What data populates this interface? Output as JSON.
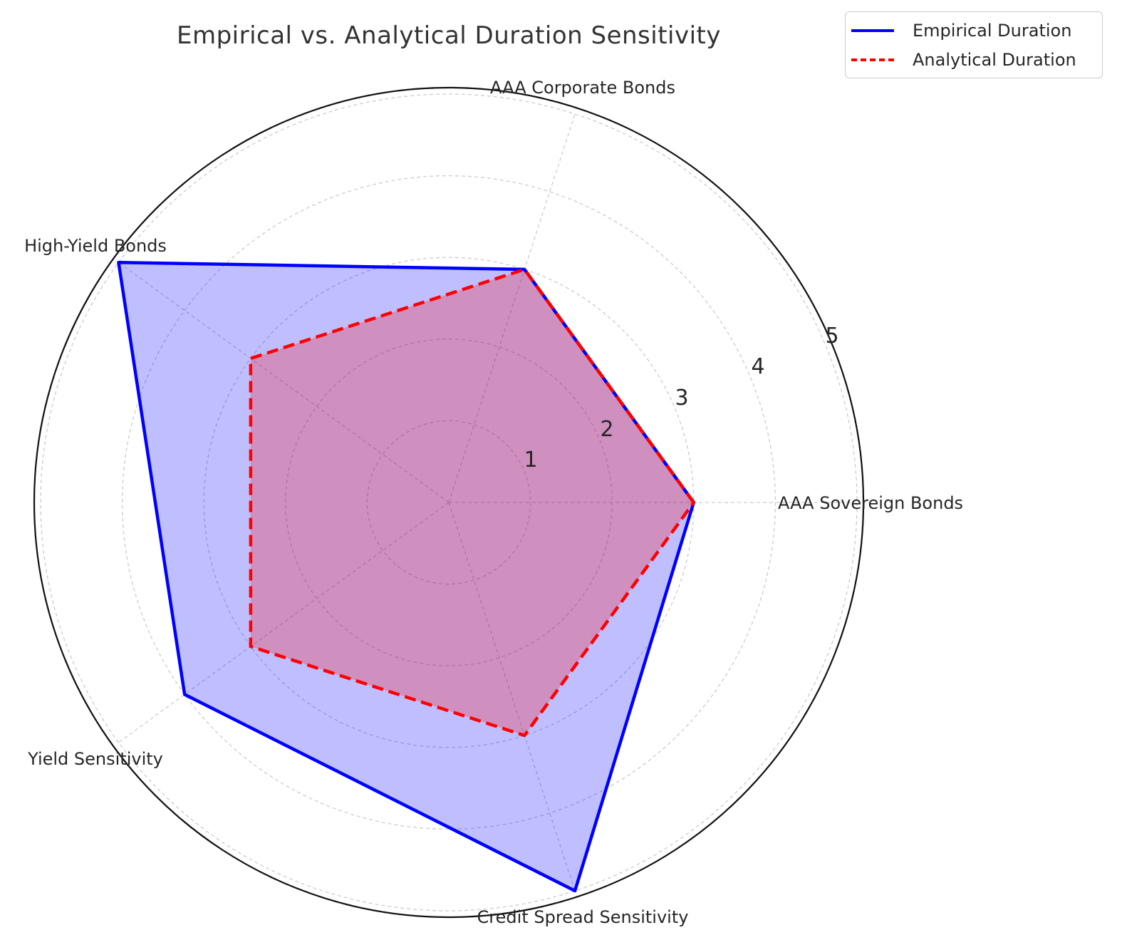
{
  "chart_data": {
    "type": "radar",
    "title": "Empirical vs. Analytical Duration Sensitivity",
    "categories": [
      "AAA Sovereign Bonds",
      "AAA Corporate Bonds",
      "High-Yield Bonds",
      "Yield Sensitivity",
      "Credit Spread Sensitivity"
    ],
    "radial_ticks": [
      "1",
      "2",
      "3",
      "4",
      "5"
    ],
    "rlim": [
      0,
      5
    ],
    "grid": true,
    "legend_position": "top-right",
    "series": [
      {
        "name": "Empirical Duration",
        "values": [
          3.0,
          3.0,
          5.0,
          4.0,
          5.0
        ],
        "color": "#0000ff",
        "line_style": "solid",
        "fill": "#0000ff",
        "fill_opacity": 0.25
      },
      {
        "name": "Analytical Duration",
        "values": [
          3.0,
          3.0,
          3.0,
          3.0,
          3.0
        ],
        "color": "#ff0000",
        "line_style": "dashed",
        "fill": "#ff0000",
        "fill_opacity": 0.25
      }
    ]
  }
}
